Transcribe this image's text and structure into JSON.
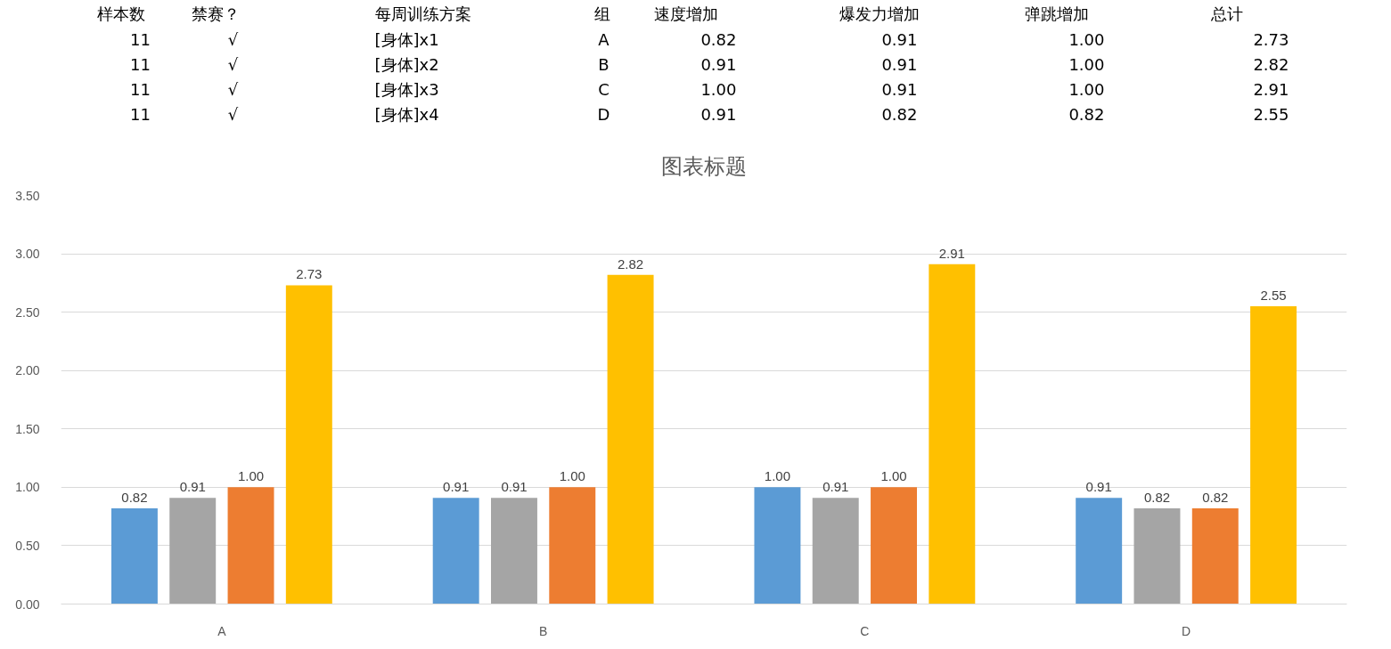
{
  "chart_data": [
    {
      "type": "other",
      "categories": [
        "样本数",
        "禁赛？",
        "每周训练方案",
        "组",
        "速度增加",
        "爆发力增加",
        "弹跳增加",
        "总计"
      ],
      "annotations": [
        "11",
        "√",
        "[身体]x1",
        "A",
        "0.82",
        "0.91",
        "1.00",
        "2.73",
        "11",
        "√",
        "[身体]x2",
        "B",
        "0.91",
        "0.91",
        "1.00",
        "2.82",
        "11",
        "√",
        "[身体]x3",
        "C",
        "1.00",
        "0.91",
        "1.00",
        "2.91",
        "11",
        "√",
        "[身体]x4",
        "D",
        "0.91",
        "0.82",
        "0.82",
        "2.55"
      ]
    },
    {
      "type": "bar",
      "title": "图表标题",
      "categories": [
        "A",
        "B",
        "C",
        "D"
      ],
      "series": [
        {
          "color": "#5b9bd5",
          "values": [
            0.82,
            0.91,
            1.0,
            0.91
          ],
          "value_labels": [
            "0.82",
            "0.91",
            "1.00",
            "0.91"
          ]
        },
        {
          "color": "#a5a5a5",
          "values": [
            0.91,
            0.91,
            0.91,
            0.82
          ],
          "value_labels": [
            "0.91",
            "0.91",
            "0.91",
            "0.82"
          ]
        },
        {
          "color": "#ed7d31",
          "values": [
            1.0,
            1.0,
            1.0,
            0.82
          ],
          "value_labels": [
            "1.00",
            "1.00",
            "1.00",
            "0.82"
          ]
        },
        {
          "color": "#ffc000",
          "values": [
            2.73,
            2.82,
            2.91,
            2.55
          ],
          "value_labels": [
            "2.73",
            "2.82",
            "2.91",
            "2.55"
          ]
        }
      ],
      "ylim": [
        0,
        3.5
      ],
      "yticks": [
        {
          "value": 0,
          "label": "0.00"
        },
        {
          "value": 0.5,
          "label": "0.50"
        },
        {
          "value": 1,
          "label": "1.00"
        },
        {
          "value": 1.5,
          "label": "1.50"
        },
        {
          "value": 2,
          "label": "2.00"
        },
        {
          "value": 2.5,
          "label": "2.50"
        },
        {
          "value": 3,
          "label": "3.00"
        },
        {
          "value": 3.5,
          "label": "3.50"
        }
      ],
      "grid": "y"
    }
  ]
}
